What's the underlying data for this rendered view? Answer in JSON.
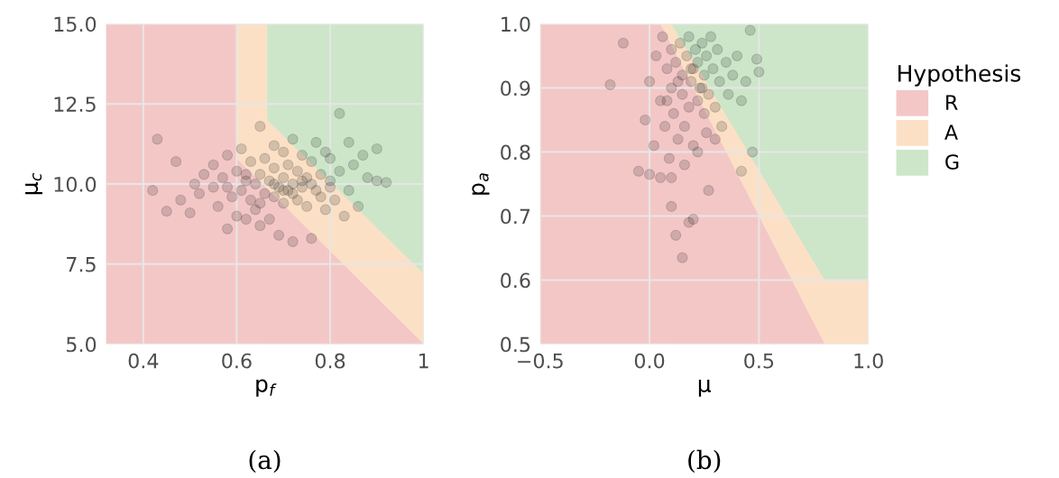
{
  "chart_data": [
    {
      "type": "scatter",
      "xlabel": "p$_{f}$",
      "ylabel": "μ$_{c}$",
      "annotations": [
        "(a)"
      ],
      "xlim": [
        0.32,
        1.0
      ],
      "ylim": [
        5,
        15
      ],
      "xticks": [
        0.4,
        0.6,
        0.8,
        1
      ],
      "yticks": [
        {
          "value": 5,
          "label": "5.0"
        },
        {
          "value": 7.5,
          "label": "7.5"
        },
        {
          "value": 10,
          "label": "10.0"
        },
        {
          "value": 12.5,
          "label": "12.5"
        },
        {
          "value": 15,
          "label": "15.0"
        }
      ],
      "grid": true,
      "series": [
        {
          "type": "area",
          "color": "#f4c7c7",
          "x": [
            0.32,
            0.6,
            0.6,
            1.0
          ],
          "values": [
            15,
            15,
            10.8,
            5
          ]
        },
        {
          "type": "area",
          "color": "#fbe0c6",
          "x": [
            0.6,
            0.665,
            0.665,
            1.0
          ],
          "values": [
            15,
            15,
            12,
            7.2
          ]
        },
        {
          "type": "area",
          "color": "#cde6c9",
          "x": [
            0.665,
            1.0
          ],
          "values": [
            15,
            15
          ]
        },
        {
          "color": "#000000",
          "marker": "circle",
          "x": [
            0.43,
            0.42,
            0.45,
            0.47,
            0.48,
            0.5,
            0.51,
            0.52,
            0.53,
            0.55,
            0.55,
            0.56,
            0.57,
            0.58,
            0.58,
            0.59,
            0.6,
            0.6,
            0.61,
            0.61,
            0.62,
            0.62,
            0.63,
            0.63,
            0.64,
            0.64,
            0.65,
            0.65,
            0.65,
            0.66,
            0.66,
            0.67,
            0.67,
            0.68,
            0.68,
            0.68,
            0.69,
            0.69,
            0.7,
            0.7,
            0.7,
            0.71,
            0.71,
            0.72,
            0.72,
            0.72,
            0.73,
            0.73,
            0.74,
            0.74,
            0.75,
            0.75,
            0.76,
            0.76,
            0.77,
            0.77,
            0.78,
            0.78,
            0.79,
            0.79,
            0.8,
            0.8,
            0.81,
            0.82,
            0.82,
            0.83,
            0.84,
            0.84,
            0.85,
            0.86,
            0.87,
            0.88,
            0.9,
            0.9,
            0.92,
            0.65,
            0.72,
            0.76,
            0.58,
            0.62,
            0.68,
            0.74,
            0.8,
            0.7
          ],
          "values": [
            11.4,
            9.8,
            9.15,
            10.7,
            9.5,
            9.1,
            10.0,
            9.7,
            10.3,
            9.9,
            10.6,
            9.3,
            10.2,
            8.6,
            10.9,
            9.6,
            10.4,
            9.0,
            9.8,
            11.1,
            10.1,
            8.9,
            9.5,
            10.7,
            10.0,
            9.2,
            11.8,
            10.3,
            8.7,
            9.7,
            10.8,
            10.1,
            8.9,
            9.6,
            10.5,
            11.2,
            9.9,
            8.4,
            10.2,
            9.4,
            11.0,
            9.8,
            10.6,
            8.2,
            10.0,
            11.4,
            9.5,
            10.4,
            9.9,
            10.9,
            10.2,
            9.3,
            8.3,
            10.7,
            9.8,
            11.3,
            10.3,
            9.6,
            11.0,
            9.2,
            10.1,
            10.8,
            9.5,
            12.2,
            10.4,
            9.0,
            11.3,
            9.8,
            10.6,
            9.3,
            10.9,
            10.2,
            11.1,
            10.1,
            10.05,
            9.4,
            9.7,
            10.0,
            9.9,
            10.3,
            10.0,
            10.1,
            9.9,
            9.8
          ]
        }
      ]
    },
    {
      "type": "scatter",
      "xlabel": "μ",
      "ylabel": "p$_{a}$",
      "annotations": [
        "(b)"
      ],
      "legend_title": "Hypothesis",
      "xlim": [
        -0.5,
        1.0
      ],
      "ylim": [
        0.5,
        1.0
      ],
      "xticks": [
        {
          "value": -0.5,
          "label": "−0.5"
        },
        {
          "value": 0,
          "label": "0.0"
        },
        0.5,
        {
          "value": 1,
          "label": "1.0"
        }
      ],
      "yticks": [
        0.5,
        0.6,
        0.7,
        0.8,
        0.9,
        {
          "value": 1,
          "label": "1.0"
        }
      ],
      "grid": true,
      "legend": "right",
      "series": [
        {
          "name": "R",
          "type": "area",
          "color": "#f4c7c7",
          "x": [
            -0.5,
            0.05,
            0.8,
            1.0
          ],
          "values": [
            1,
            1,
            0.5,
            0.5
          ]
        },
        {
          "name": "A",
          "type": "area",
          "color": "#fbe0c6",
          "x": [
            0.05,
            0.1,
            0.8,
            1.0
          ],
          "values": [
            1,
            1,
            0.6,
            0.6
          ]
        },
        {
          "name": "G",
          "type": "area",
          "color": "#cde6c9",
          "x": [
            0.1,
            1.0
          ],
          "values": [
            1,
            1
          ]
        },
        {
          "color": "#000000",
          "marker": "circle",
          "x": [
            -0.18,
            -0.12,
            -0.05,
            0.0,
            0.05,
            0.12,
            0.15,
            0.1,
            0.18,
            0.2,
            0.27,
            0.42,
            0.47,
            0.5,
            0.49,
            0.46,
            -0.02,
            0.0,
            0.02,
            0.03,
            0.05,
            0.06,
            0.07,
            0.08,
            0.09,
            0.1,
            0.1,
            0.11,
            0.12,
            0.13,
            0.14,
            0.15,
            0.15,
            0.16,
            0.17,
            0.18,
            0.18,
            0.19,
            0.2,
            0.2,
            0.21,
            0.22,
            0.22,
            0.23,
            0.24,
            0.25,
            0.25,
            0.26,
            0.27,
            0.28,
            0.29,
            0.3,
            0.31,
            0.32,
            0.33,
            0.35,
            0.36,
            0.38,
            0.4,
            0.42,
            0.44,
            0.1,
            0.16,
            0.22,
            0.26,
            0.3,
            0.13,
            0.19,
            0.24,
            0.08
          ],
          "values": [
            0.905,
            0.97,
            0.77,
            0.765,
            0.76,
            0.67,
            0.635,
            0.715,
            0.69,
            0.695,
            0.74,
            0.77,
            0.8,
            0.925,
            0.945,
            0.99,
            0.85,
            0.91,
            0.81,
            0.95,
            0.88,
            0.98,
            0.84,
            0.93,
            0.79,
            0.9,
            0.96,
            0.86,
            0.94,
            0.82,
            0.97,
            0.89,
            0.92,
            0.84,
            0.95,
            0.87,
            0.98,
            0.91,
            0.93,
            0.81,
            0.96,
            0.88,
            0.94,
            0.9,
            0.97,
            0.86,
            0.92,
            0.95,
            0.89,
            0.98,
            0.93,
            0.87,
            0.96,
            0.91,
            0.84,
            0.94,
            0.89,
            0.92,
            0.95,
            0.88,
            0.91,
            0.76,
            0.78,
            0.8,
            0.83,
            0.82,
            0.91,
            0.93,
            0.9,
            0.88
          ]
        }
      ]
    }
  ]
}
